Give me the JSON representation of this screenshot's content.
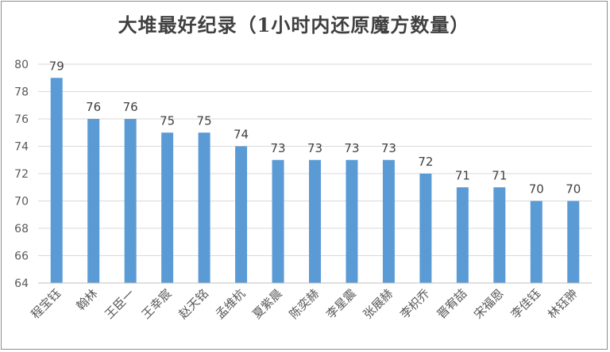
{
  "chart_data": {
    "type": "bar",
    "title": "大堆最好纪录（1小时内还原魔方数量）",
    "categories": [
      "程宝钰",
      "翰林",
      "王臣一",
      "王幸宸",
      "赵天铭",
      "孟维杭",
      "夏紫晨",
      "陈奕赫",
      "李星震",
      "张展赫",
      "李枳乔",
      "晋宥喆",
      "宋福恩",
      "李佳钰",
      "林钰翀"
    ],
    "values": [
      79,
      76,
      76,
      75,
      75,
      74,
      73,
      73,
      73,
      73,
      72,
      71,
      71,
      70,
      70
    ],
    "ylim": [
      64,
      80
    ],
    "yticks": [
      64,
      66,
      68,
      70,
      72,
      74,
      76,
      78,
      80
    ],
    "xlabel": "",
    "ylabel": "",
    "grid": true,
    "legend": "none",
    "bar_color": "#5b9bd5",
    "grid_color": "#d9d9d9",
    "data_labels": true
  }
}
